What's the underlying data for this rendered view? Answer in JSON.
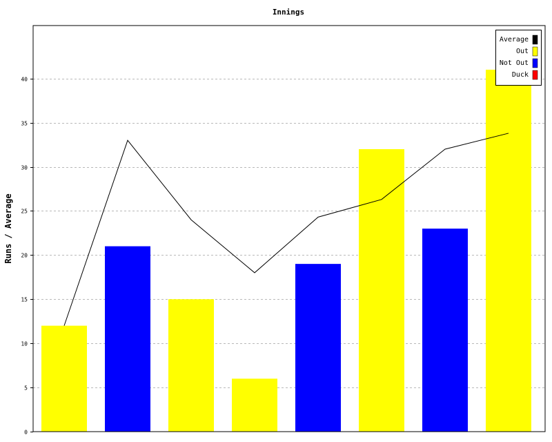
{
  "chart_data": {
    "type": "bar",
    "title": "Innings",
    "xlabel": "",
    "ylabel": "Runs / Average",
    "ylim": [
      0,
      46
    ],
    "yticks": [
      0,
      5,
      10,
      15,
      20,
      25,
      30,
      35,
      40
    ],
    "grid": true,
    "legend_position": "top-right",
    "legend": [
      {
        "name": "Average",
        "color": "#000000"
      },
      {
        "name": "Out",
        "color": "#ffff00"
      },
      {
        "name": "Not Out",
        "color": "#0000ff"
      },
      {
        "name": "Duck",
        "color": "#ff0000"
      }
    ],
    "bars": [
      {
        "value": 12,
        "status": "Out"
      },
      {
        "value": 21,
        "status": "Not Out"
      },
      {
        "value": 15,
        "status": "Out"
      },
      {
        "value": 6,
        "status": "Out"
      },
      {
        "value": 19,
        "status": "Not Out"
      },
      {
        "value": 32,
        "status": "Out"
      },
      {
        "value": 23,
        "status": "Not Out"
      },
      {
        "value": 41,
        "status": "Out"
      }
    ],
    "average_line": [
      12,
      33,
      24,
      18,
      24.3,
      26.3,
      32,
      33.8
    ]
  }
}
